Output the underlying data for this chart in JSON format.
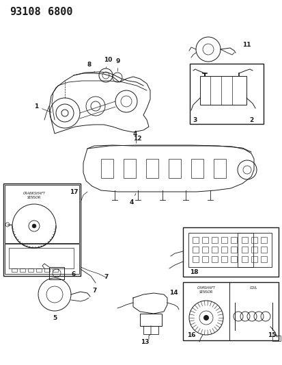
{
  "title": "93108  6800",
  "title1": "93108",
  "title2": "6800",
  "background_color": "#ffffff",
  "line_color": "#1a1a1a",
  "figsize": [
    4.14,
    5.33
  ],
  "dpi": 100,
  "header_font_size": 11,
  "fig_w": 414,
  "fig_h": 533
}
